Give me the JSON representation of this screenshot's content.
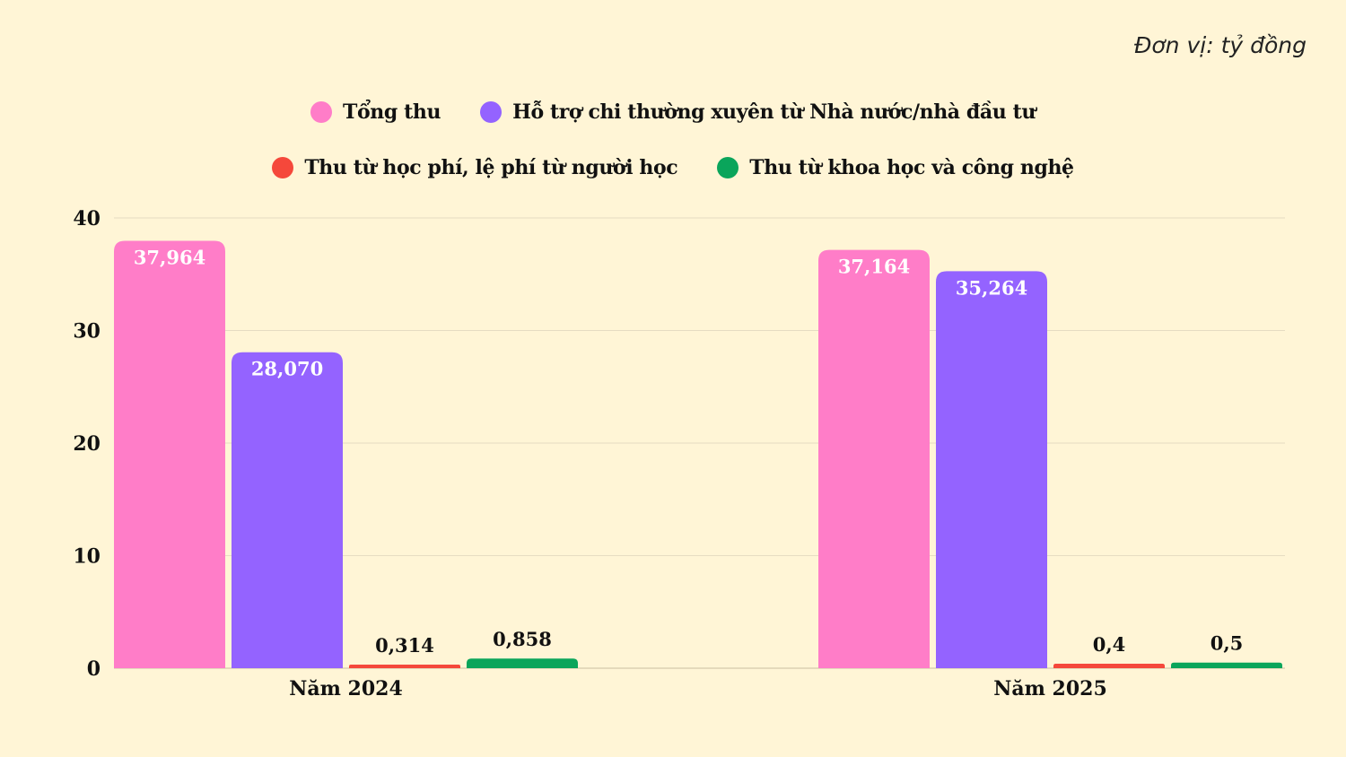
{
  "unit_label": "Đơn vị: tỷ đồng",
  "chart_data": {
    "type": "bar",
    "categories": [
      "Năm 2024",
      "Năm 2025"
    ],
    "series": [
      {
        "name": "Tổng thu",
        "color": "#ff7dc8",
        "values": [
          37.964,
          37.164
        ],
        "labels": [
          "37,964",
          "37,164"
        ]
      },
      {
        "name": "Hỗ trợ chi thường xuyên từ Nhà nước/nhà đầu tư",
        "color": "#9463ff",
        "values": [
          28.07,
          35.264
        ],
        "labels": [
          "28,070",
          "35,264"
        ]
      },
      {
        "name": "Thu từ học phí, lệ phí từ người học",
        "color": "#f5483b",
        "values": [
          0.314,
          0.4
        ],
        "labels": [
          "0,314",
          "0,4"
        ]
      },
      {
        "name": "Thu từ khoa học và công nghệ",
        "color": "#0aa55b",
        "values": [
          0.858,
          0.5
        ],
        "labels": [
          "0,858",
          "0,5"
        ]
      }
    ],
    "yticks": [
      0,
      10,
      20,
      30,
      40
    ],
    "ylim": [
      0,
      40
    ],
    "grid": true,
    "legend_position": "top-center"
  }
}
